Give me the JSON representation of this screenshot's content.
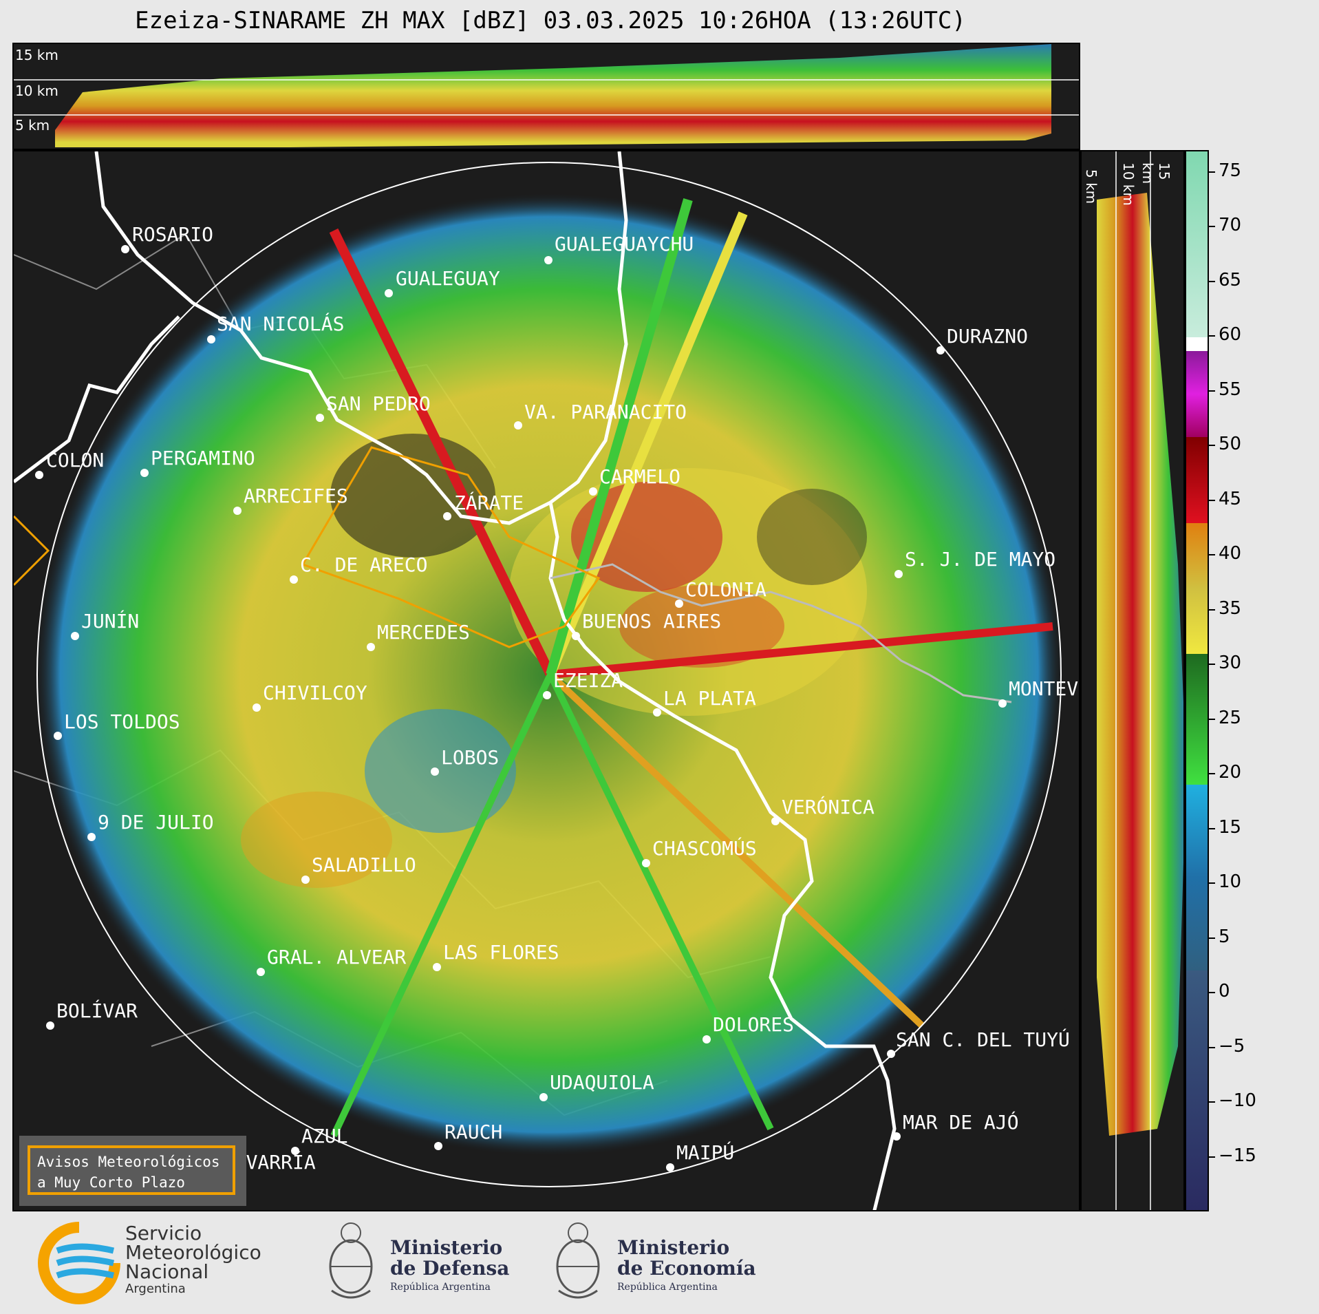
{
  "title": "Ezeiza-SINARAME ZH MAX [dBZ] 03.03.2025 10:26HOA (13:26UTC)",
  "top_xsection": {
    "height_labels": [
      "15 km",
      "10 km",
      "5 km"
    ]
  },
  "right_xsection": {
    "height_labels": [
      "5 km",
      "10 km",
      "15 km"
    ]
  },
  "colorbar": {
    "ticks": [
      "75",
      "70",
      "65",
      "60",
      "55",
      "50",
      "45",
      "40",
      "35",
      "30",
      "25",
      "20",
      "15",
      "10",
      "5",
      "0",
      "−5",
      "−10",
      "−15"
    ],
    "range": [
      -20,
      77
    ]
  },
  "cities": [
    {
      "name": "ROSARIO"
    },
    {
      "name": "GUALEGUAYCHU"
    },
    {
      "name": "GUALEGUAY"
    },
    {
      "name": "SAN NICOLÁS"
    },
    {
      "name": "DURAZNO"
    },
    {
      "name": "SAN PEDRO"
    },
    {
      "name": "VA. PARANACITO"
    },
    {
      "name": "COLON"
    },
    {
      "name": "PERGAMINO"
    },
    {
      "name": "CARMELO"
    },
    {
      "name": "ARRECIFES"
    },
    {
      "name": "ZÁRATE"
    },
    {
      "name": "C. DE ARECO"
    },
    {
      "name": "S. J. DE MAYO"
    },
    {
      "name": "COLONIA"
    },
    {
      "name": "JUNÍN"
    },
    {
      "name": "BUENOS AIRES"
    },
    {
      "name": "MERCEDES"
    },
    {
      "name": "EZEIZA"
    },
    {
      "name": "MONTEV"
    },
    {
      "name": "CHIVILCOY"
    },
    {
      "name": "LA PLATA"
    },
    {
      "name": "LOS TOLDOS"
    },
    {
      "name": "LOBOS"
    },
    {
      "name": "VERÓNICA"
    },
    {
      "name": "9 DE JULIO"
    },
    {
      "name": "CHASCOMÚS"
    },
    {
      "name": "SALADILLO"
    },
    {
      "name": "GRAL. ALVEAR"
    },
    {
      "name": "LAS FLORES"
    },
    {
      "name": "BOLÍVAR"
    },
    {
      "name": "DOLORES"
    },
    {
      "name": "SAN C. DEL TUYÚ"
    },
    {
      "name": "UDAQUIOLA"
    },
    {
      "name": "AZUL"
    },
    {
      "name": "RAUCH"
    },
    {
      "name": "MAR DE AJÓ"
    },
    {
      "name": "OLAVARRÍA"
    },
    {
      "name": "MAIPÚ"
    }
  ],
  "avisos": {
    "line1": "Avisos Meteorológicos",
    "line2": "a Muy Corto Plazo"
  },
  "footer": {
    "smn": {
      "line1": "Servicio",
      "line2": "Meteorológico",
      "line3": "Nacional",
      "line4": "Argentina"
    },
    "defensa": {
      "line1": "Ministerio",
      "line2": "de Defensa",
      "line3": "República Argentina"
    },
    "economia": {
      "line1": "Ministerio",
      "line2": "de Economía",
      "line3": "República Argentina"
    }
  },
  "colors": {
    "map_bg": "#1c1c1c",
    "warning_box": "#f0a000",
    "logo_text": "#2a2f4a"
  }
}
